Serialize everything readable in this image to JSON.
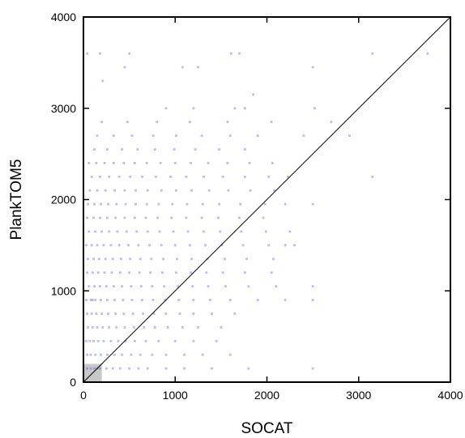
{
  "chart_data": {
    "type": "scatter",
    "title": "",
    "xlabel": "SOCAT",
    "ylabel": "PlankTOM5",
    "xlim": [
      0,
      4000
    ],
    "ylim": [
      0,
      4000
    ],
    "xticks": [
      0,
      1000,
      2000,
      3000,
      4000
    ],
    "yticks": [
      0,
      1000,
      2000,
      3000,
      4000
    ],
    "xtick_labels": [
      "0",
      "1000",
      "2000",
      "3000",
      "4000"
    ],
    "ytick_labels": [
      "0",
      "1000",
      "2000",
      "3000",
      "4000"
    ],
    "grid": false,
    "legend": "none",
    "reference_line": {
      "x": [
        0,
        4000
      ],
      "y": [
        0,
        4000
      ]
    },
    "shaded_region": {
      "x": [
        0,
        200
      ],
      "y": [
        0,
        200
      ]
    },
    "point_color": "#3f3fd8",
    "line_color": "#000000",
    "shade_color": "#c8c8c8",
    "series": [
      {
        "x": [
          40,
          80,
          120,
          150,
          180,
          250,
          320,
          400,
          500,
          600,
          700,
          900,
          1100,
          1400,
          1800,
          2500,
          40,
          80,
          130,
          190,
          260,
          340,
          420,
          520,
          620,
          750,
          900,
          1100,
          1300,
          1600,
          30,
          70,
          110,
          160,
          220,
          300,
          380,
          460,
          560,
          680,
          820,
          1000,
          1200,
          1450,
          50,
          100,
          150,
          210,
          280,
          360,
          450,
          550,
          660,
          780,
          920,
          1080,
          1250,
          1500,
          40,
          90,
          140,
          200,
          270,
          350,
          440,
          540,
          650,
          770,
          900,
          1050,
          1200,
          1400,
          1650,
          30,
          80,
          130,
          190,
          260,
          340,
          430,
          530,
          640,
          760,
          890,
          1040,
          1200,
          1380,
          1600,
          1900,
          2200,
          60,
          120,
          180,
          250,
          330,
          420,
          520,
          630,
          750,
          880,
          1030,
          1190,
          1360,
          1550,
          1800,
          2100,
          2500,
          40,
          100,
          160,
          230,
          310,
          400,
          500,
          610,
          730,
          860,
          1010,
          1170,
          1340,
          1520,
          1760,
          2050,
          50,
          110,
          170,
          240,
          320,
          410,
          510,
          620,
          740,
          870,
          1020,
          1180,
          1350,
          1540,
          1780,
          2070,
          30,
          90,
          150,
          220,
          300,
          390,
          490,
          600,
          720,
          850,
          1000,
          1160,
          1330,
          1510,
          1740,
          2020,
          2300,
          60,
          130,
          200,
          280,
          370,
          470,
          580,
          700,
          830,
          980,
          1140,
          1310,
          1490,
          1720,
          1990,
          2250,
          40,
          110,
          180,
          260,
          350,
          450,
          560,
          680,
          810,
          960,
          1120,
          1290,
          1470,
          1700,
          1960,
          50,
          120,
          190,
          270,
          360,
          460,
          570,
          690,
          820,
          970,
          1130,
          1300,
          1480,
          1710,
          1980,
          2200,
          2500,
          70,
          150,
          240,
          340,
          450,
          570,
          700,
          850,
          1010,
          1180,
          1370,
          1580,
          1820,
          2080,
          90,
          180,
          280,
          390,
          510,
          640,
          790,
          950,
          1120,
          1310,
          1520,
          1760,
          2020,
          2230,
          60,
          140,
          230,
          330,
          440,
          560,
          690,
          840,
          1000,
          1170,
          1360,
          1570,
          1810,
          2060,
          120,
          260,
          420,
          590,
          780,
          990,
          1220,
          1480,
          1760,
          150,
          330,
          530,
          760,
          1010,
          1290,
          1600,
          1900,
          2400,
          2900,
          200,
          480,
          800,
          1160,
          1570,
          2050,
          2700,
          40,
          180,
          500,
          1080,
          1610,
          1650,
          1700,
          1760,
          1850,
          2500,
          3150,
          3750,
          210,
          450,
          900,
          1200,
          2520,
          3150,
          1250,
          100,
          2500,
          2200
        ],
        "y": [
          150,
          150,
          150,
          150,
          150,
          150,
          150,
          150,
          150,
          150,
          150,
          150,
          150,
          150,
          150,
          150,
          300,
          300,
          300,
          300,
          300,
          300,
          300,
          300,
          300,
          300,
          300,
          300,
          300,
          300,
          450,
          450,
          450,
          450,
          450,
          450,
          450,
          450,
          450,
          450,
          450,
          450,
          450,
          450,
          600,
          600,
          600,
          600,
          600,
          600,
          600,
          600,
          600,
          600,
          600,
          600,
          600,
          600,
          750,
          750,
          750,
          750,
          750,
          750,
          750,
          750,
          750,
          750,
          750,
          750,
          750,
          750,
          750,
          900,
          900,
          900,
          900,
          900,
          900,
          900,
          900,
          900,
          900,
          900,
          900,
          900,
          900,
          900,
          900,
          900,
          1050,
          1050,
          1050,
          1050,
          1050,
          1050,
          1050,
          1050,
          1050,
          1050,
          1050,
          1050,
          1050,
          1050,
          1050,
          1050,
          1050,
          1200,
          1200,
          1200,
          1200,
          1200,
          1200,
          1200,
          1200,
          1200,
          1200,
          1200,
          1200,
          1200,
          1200,
          1200,
          1200,
          1350,
          1350,
          1350,
          1350,
          1350,
          1350,
          1350,
          1350,
          1350,
          1350,
          1350,
          1350,
          1350,
          1350,
          1350,
          1350,
          1500,
          1500,
          1500,
          1500,
          1500,
          1500,
          1500,
          1500,
          1500,
          1500,
          1500,
          1500,
          1500,
          1500,
          1500,
          1500,
          1500,
          1650,
          1650,
          1650,
          1650,
          1650,
          1650,
          1650,
          1650,
          1650,
          1650,
          1650,
          1650,
          1650,
          1650,
          1650,
          1650,
          1800,
          1800,
          1800,
          1800,
          1800,
          1800,
          1800,
          1800,
          1800,
          1800,
          1800,
          1800,
          1800,
          1800,
          1800,
          1950,
          1950,
          1950,
          1950,
          1950,
          1950,
          1950,
          1950,
          1950,
          1950,
          1950,
          1950,
          1950,
          1950,
          1950,
          1950,
          1950,
          2100,
          2100,
          2100,
          2100,
          2100,
          2100,
          2100,
          2100,
          2100,
          2100,
          2100,
          2100,
          2100,
          2100,
          2250,
          2250,
          2250,
          2250,
          2250,
          2250,
          2250,
          2250,
          2250,
          2250,
          2250,
          2250,
          2250,
          2250,
          2400,
          2400,
          2400,
          2400,
          2400,
          2400,
          2400,
          2400,
          2400,
          2400,
          2400,
          2400,
          2400,
          2400,
          2550,
          2550,
          2550,
          2550,
          2550,
          2550,
          2550,
          2550,
          2550,
          2700,
          2700,
          2700,
          2700,
          2700,
          2700,
          2700,
          2700,
          2700,
          2700,
          2850,
          2850,
          2850,
          2850,
          2850,
          2850,
          2850,
          3600,
          3600,
          3600,
          3450,
          3600,
          3000,
          3600,
          3000,
          3150,
          3450,
          3600,
          3600,
          3300,
          3450,
          3000,
          3000,
          3000,
          2250,
          3450,
          900,
          900,
          1500
        ]
      }
    ]
  }
}
